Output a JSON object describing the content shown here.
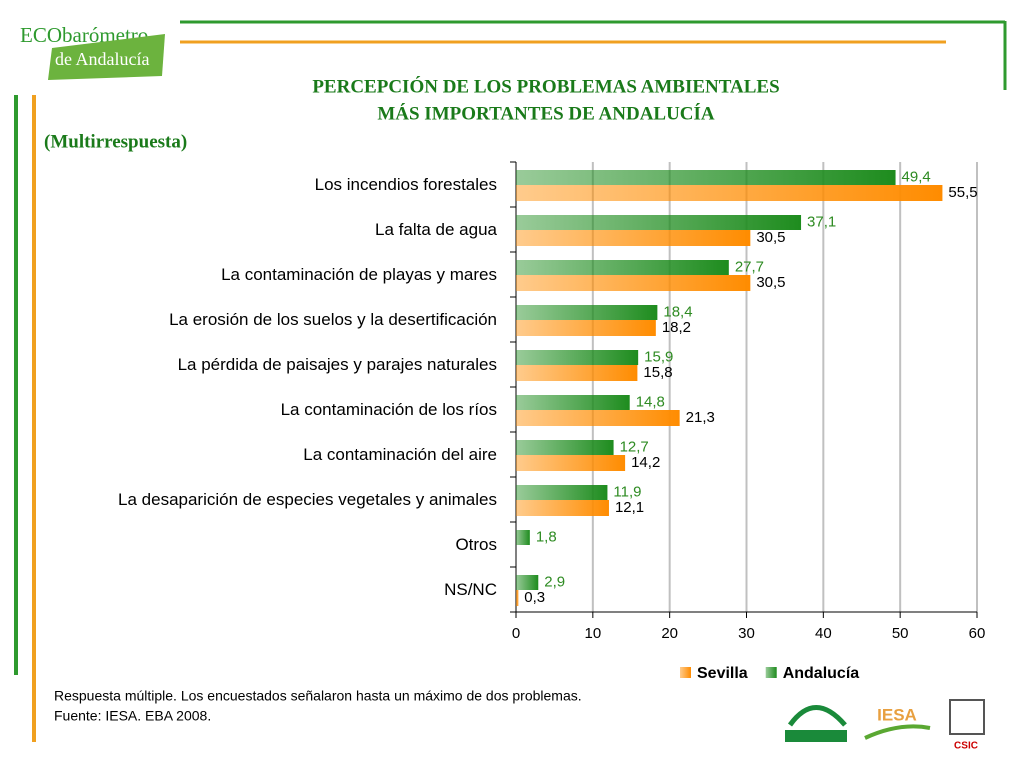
{
  "header": {
    "logo_top": "ECObarómetro",
    "logo_bottom": "de Andalucía"
  },
  "chart_data": {
    "type": "hbar",
    "title": [
      "PERCEPCIÓN DE LOS PROBLEMAS AMBIENTALES",
      "MÁS IMPORTANTES DE ANDALUCÍA"
    ],
    "subtitle": "(Multirrespuesta)",
    "categories": [
      "Los incendios forestales",
      "La falta de agua",
      "La contaminación de playas y mares",
      "La erosión de los suelos y la desertificación",
      "La pérdida de paisajes y parajes naturales",
      "La contaminación de los ríos",
      "La contaminación del aire",
      "La desaparición de especies vegetales y animales",
      "Otros",
      "NS/NC"
    ],
    "series": [
      {
        "name": "Andalucía",
        "color": "#1e8c1e",
        "label_color": "#2e8b22",
        "values": [
          49.4,
          37.1,
          27.7,
          18.4,
          15.9,
          14.8,
          12.7,
          11.9,
          1.8,
          2.9
        ],
        "value_labels": [
          "49,4",
          "37,1",
          "27,7",
          "18,4",
          "15,9",
          "14,8",
          "12,7",
          "11,9",
          "1,8",
          "2,9"
        ]
      },
      {
        "name": "Sevilla",
        "color": "#ff8c00",
        "label_color": "#000000",
        "values": [
          55.5,
          30.5,
          30.5,
          18.2,
          15.8,
          21.3,
          14.2,
          12.1,
          null,
          0.3
        ],
        "value_labels": [
          "55,5",
          "30,5",
          "30,5",
          "18,2",
          "15,8",
          "21,3",
          "14,2",
          "12,1",
          null,
          "0,3"
        ]
      }
    ],
    "legend_order": [
      "Sevilla",
      "Andalucía"
    ],
    "xlim": [
      0,
      60
    ],
    "xticks": [
      0,
      10,
      20,
      30,
      40,
      50,
      60
    ],
    "grid": true
  },
  "footnote": [
    "Respuesta múltiple. Los encuestados señalaron hasta un máximo de dos  problemas.",
    "Fuente: IESA. EBA 2008."
  ],
  "logos": [
    "IESA",
    "CSIC"
  ]
}
